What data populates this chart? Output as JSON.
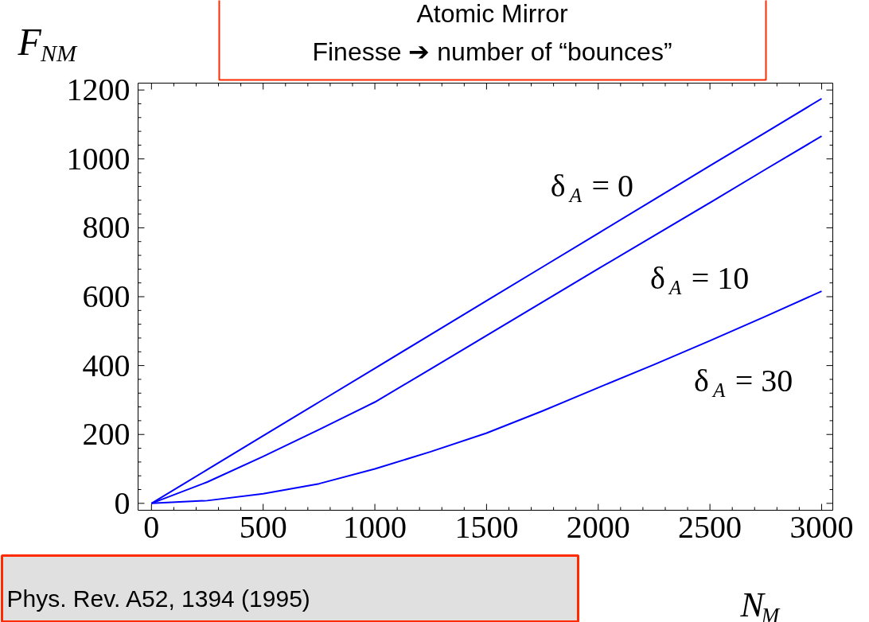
{
  "chart_data": {
    "type": "line",
    "title": "Atomic Mirror",
    "subtitle": "Finesse ➔ number of “bounces”",
    "xlabel": "N$_{M}$",
    "ylabel": "F$_{NM}$",
    "x": [
      0,
      250,
      500,
      750,
      1000,
      1250,
      1500,
      1750,
      2000,
      2250,
      2500,
      2750,
      3000
    ],
    "series": [
      {
        "name": "δ$_{A}$ = 0",
        "color": "#0000ff",
        "values": [
          0,
          98,
          196,
          294,
          392,
          490,
          588,
          686,
          784,
          882,
          980,
          1077,
          1175
        ]
      },
      {
        "name": "δ$_{A}$ = 10",
        "color": "#0000ff",
        "values": [
          0,
          62,
          136,
          214,
          294,
          390,
          487,
          584,
          681,
          777,
          873,
          970,
          1066
        ]
      },
      {
        "name": "δ$_{A}$ = 30",
        "color": "#0000ff",
        "values": [
          0,
          8,
          28,
          57,
          100,
          150,
          204,
          268,
          336,
          403,
          472,
          543,
          616
        ]
      }
    ],
    "xlim": [
      -60,
      3050
    ],
    "ylim": [
      -20,
      1220
    ],
    "xticks": [
      0,
      500,
      1000,
      1500,
      2000,
      2500,
      3000
    ],
    "yticks": [
      0,
      200,
      400,
      600,
      800,
      1000,
      1200
    ],
    "grid": false,
    "legend": false,
    "marker": "none",
    "line_style": "solid",
    "annotations": [
      "Phys. Rev. A52, 1394 (1995)"
    ]
  }
}
